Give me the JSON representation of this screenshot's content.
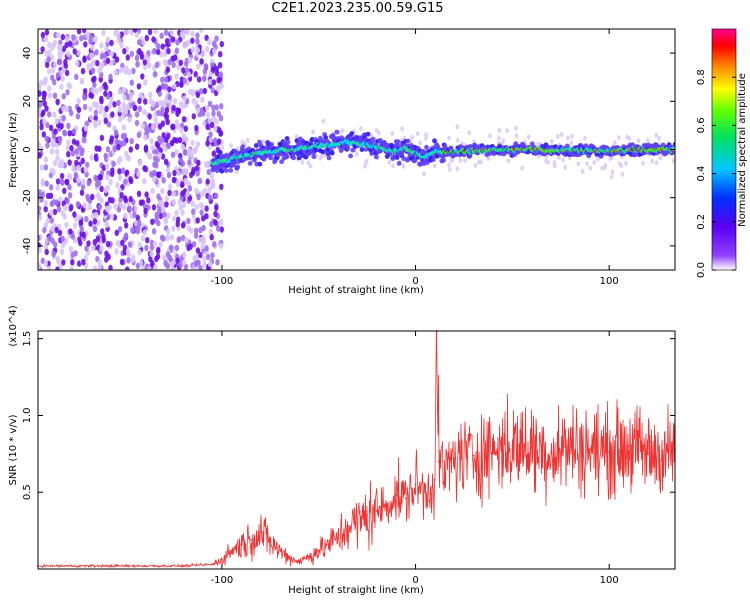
{
  "figure": {
    "title": "C2E1.2023.235.00.59.G15"
  },
  "chart_data": [
    {
      "type": "heatmap",
      "title": "C2E1.2023.235.00.59.G15",
      "xlabel": "Height of straight line (km)",
      "ylabel": "Frequency (Hz)",
      "xlim": [
        -195,
        134
      ],
      "ylim": [
        -50,
        50
      ],
      "xticks": [
        -100,
        0,
        100
      ],
      "xtick_labels": [
        "-100",
        "0",
        "100"
      ],
      "yticks": [
        -40,
        -20,
        0,
        20,
        40
      ],
      "ytick_labels": [
        "-40",
        "-20",
        "0",
        "20",
        "40"
      ],
      "colorbar": {
        "label": "Normalized spectral amplitude",
        "range": [
          0,
          1
        ],
        "ticks": [
          0.0,
          0.2,
          0.4,
          0.6,
          0.8
        ],
        "tick_labels": [
          "0.0",
          "0.2",
          "0.4",
          "0.6",
          "0.8"
        ],
        "colormap": "rainbow (white - purple - blue - cyan - green - yellow - red - magenta)"
      },
      "ridge_frequency": {
        "x": [
          -105,
          -95,
          -85,
          -75,
          -65,
          -55,
          -45,
          -35,
          -25,
          -20,
          -15,
          -10,
          -5,
          0,
          5,
          10,
          20,
          40,
          60,
          80,
          100,
          120,
          134
        ],
        "y": [
          -6,
          -4,
          -2,
          -1,
          0,
          1,
          2,
          3,
          2,
          1,
          0,
          -1,
          1,
          -2,
          -3,
          -1,
          -1,
          0,
          0,
          -0.5,
          -0.5,
          0,
          0
        ]
      },
      "grid": false
    },
    {
      "type": "line",
      "xlabel": "Height of straight line (km)",
      "ylabel": "SNR (10 * v/v)",
      "y_multiplier_label": "(x10^4)",
      "xlim": [
        -195,
        134
      ],
      "ylim": [
        0,
        1.55
      ],
      "xticks": [
        -100,
        0,
        100
      ],
      "xtick_labels": [
        "-100",
        "0",
        "100"
      ],
      "yticks": [
        0.5,
        1.0,
        1.5
      ],
      "ytick_labels": [
        "0.5",
        "1.0",
        "1.5"
      ],
      "series": [
        {
          "color": "#ee3333",
          "x": [
            -195,
            -180,
            -160,
            -140,
            -120,
            -105,
            -100,
            -95,
            -90,
            -85,
            -80,
            -75,
            -70,
            -65,
            -60,
            -55,
            -50,
            -45,
            -40,
            -35,
            -30,
            -25,
            -20,
            -15,
            -10,
            -5,
            0,
            5,
            10,
            11,
            12,
            15,
            20,
            30,
            40,
            50,
            60,
            70,
            80,
            90,
            100,
            110,
            120,
            134
          ],
          "y": [
            0.02,
            0.02,
            0.02,
            0.02,
            0.02,
            0.03,
            0.06,
            0.12,
            0.16,
            0.19,
            0.24,
            0.17,
            0.12,
            0.07,
            0.05,
            0.08,
            0.12,
            0.16,
            0.2,
            0.28,
            0.3,
            0.35,
            0.38,
            0.42,
            0.48,
            0.46,
            0.55,
            0.5,
            0.58,
            1.55,
            0.7,
            0.62,
            0.72,
            0.74,
            0.78,
            0.8,
            0.79,
            0.76,
            0.8,
            0.78,
            0.76,
            0.8,
            0.75,
            0.77
          ]
        }
      ],
      "grid": false
    }
  ]
}
